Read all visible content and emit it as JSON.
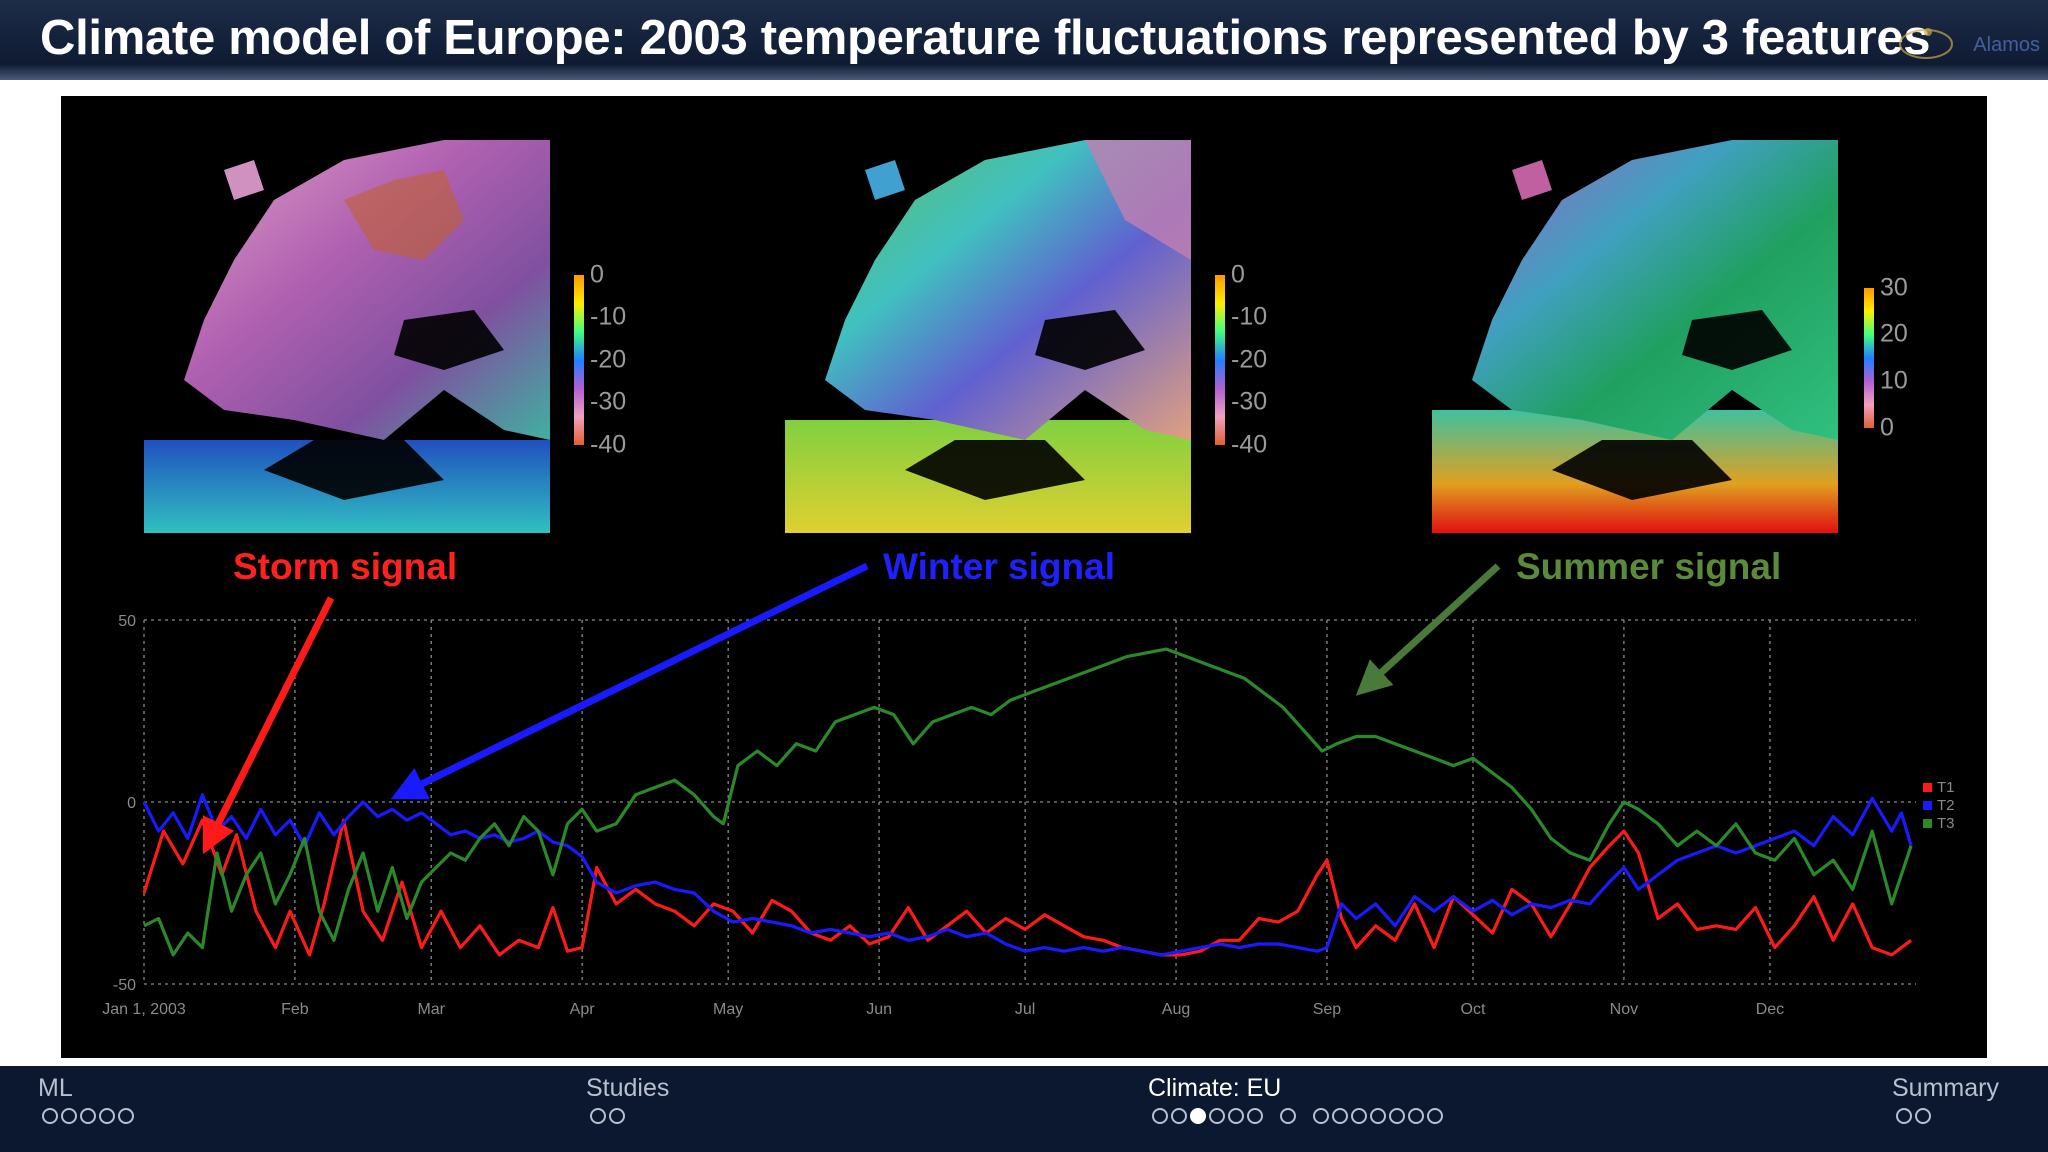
{
  "header": {
    "title": "Climate model of Europe: 2003 temperature fluctuations represented by 3 features",
    "logo_text": "Alamos"
  },
  "figure": {
    "maps": [
      {
        "name": "storm",
        "colorbar_ticks": [
          "0",
          "-10",
          "-20",
          "-30",
          "-40"
        ]
      },
      {
        "name": "winter",
        "colorbar_ticks": [
          "0",
          "-10",
          "-20",
          "-30",
          "-40"
        ]
      },
      {
        "name": "summer",
        "colorbar_ticks": [
          "30",
          "20",
          "10",
          "0"
        ]
      }
    ],
    "signals": [
      {
        "label": "Storm signal",
        "color": "#ff1a1a"
      },
      {
        "label": "Winter signal",
        "color": "#1a1aff"
      },
      {
        "label": "Summer signal",
        "color": "#4a8a2a"
      }
    ]
  },
  "chart_data": {
    "type": "line",
    "x_tick_labels": [
      "Jan 1, 2003",
      "Feb",
      "Mar",
      "Apr",
      "May",
      "Jun",
      "Jul",
      "Aug",
      "Sep",
      "Oct",
      "Nov",
      "Dec"
    ],
    "x_tick_days": [
      1,
      32,
      60,
      91,
      121,
      152,
      182,
      213,
      244,
      274,
      305,
      335
    ],
    "xlim": [
      1,
      365
    ],
    "ylim": [
      -50,
      50
    ],
    "y_ticks": [
      50,
      0,
      -50
    ],
    "grid": true,
    "legend_position": "right",
    "series": [
      {
        "name": "T1",
        "color": "#ff1a1a",
        "points": [
          [
            1,
            -25
          ],
          [
            5,
            -8
          ],
          [
            9,
            -17
          ],
          [
            13,
            -5
          ],
          [
            17,
            -20
          ],
          [
            20,
            -9
          ],
          [
            24,
            -30
          ],
          [
            28,
            -40
          ],
          [
            31,
            -30
          ],
          [
            35,
            -42
          ],
          [
            38,
            -28
          ],
          [
            42,
            -5
          ],
          [
            46,
            -30
          ],
          [
            50,
            -38
          ],
          [
            54,
            -22
          ],
          [
            58,
            -40
          ],
          [
            62,
            -30
          ],
          [
            66,
            -40
          ],
          [
            70,
            -34
          ],
          [
            74,
            -42
          ],
          [
            78,
            -38
          ],
          [
            82,
            -40
          ],
          [
            85,
            -29
          ],
          [
            88,
            -41
          ],
          [
            91,
            -40
          ],
          [
            94,
            -18
          ],
          [
            98,
            -28
          ],
          [
            102,
            -24
          ],
          [
            106,
            -28
          ],
          [
            110,
            -30
          ],
          [
            114,
            -34
          ],
          [
            118,
            -28
          ],
          [
            122,
            -30
          ],
          [
            126,
            -36
          ],
          [
            130,
            -27
          ],
          [
            134,
            -30
          ],
          [
            138,
            -36
          ],
          [
            142,
            -38
          ],
          [
            146,
            -34
          ],
          [
            150,
            -39
          ],
          [
            154,
            -37
          ],
          [
            158,
            -29
          ],
          [
            162,
            -38
          ],
          [
            166,
            -34
          ],
          [
            170,
            -30
          ],
          [
            174,
            -36
          ],
          [
            178,
            -32
          ],
          [
            182,
            -35
          ],
          [
            186,
            -31
          ],
          [
            190,
            -34
          ],
          [
            194,
            -37
          ],
          [
            198,
            -38
          ],
          [
            202,
            -40
          ],
          [
            206,
            -41
          ],
          [
            210,
            -42
          ],
          [
            214,
            -42
          ],
          [
            218,
            -41
          ],
          [
            222,
            -38
          ],
          [
            226,
            -38
          ],
          [
            230,
            -32
          ],
          [
            234,
            -33
          ],
          [
            238,
            -30
          ],
          [
            242,
            -20
          ],
          [
            244,
            -16
          ],
          [
            247,
            -32
          ],
          [
            250,
            -40
          ],
          [
            254,
            -34
          ],
          [
            258,
            -38
          ],
          [
            262,
            -28
          ],
          [
            266,
            -40
          ],
          [
            270,
            -26
          ],
          [
            274,
            -31
          ],
          [
            278,
            -36
          ],
          [
            282,
            -24
          ],
          [
            286,
            -28
          ],
          [
            290,
            -37
          ],
          [
            294,
            -28
          ],
          [
            298,
            -18
          ],
          [
            302,
            -12
          ],
          [
            305,
            -8
          ],
          [
            308,
            -14
          ],
          [
            312,
            -32
          ],
          [
            316,
            -28
          ],
          [
            320,
            -35
          ],
          [
            324,
            -34
          ],
          [
            328,
            -35
          ],
          [
            332,
            -29
          ],
          [
            336,
            -40
          ],
          [
            340,
            -34
          ],
          [
            344,
            -26
          ],
          [
            348,
            -38
          ],
          [
            352,
            -28
          ],
          [
            356,
            -40
          ],
          [
            360,
            -42
          ],
          [
            364,
            -38
          ]
        ]
      },
      {
        "name": "T2",
        "color": "#1a1aff",
        "points": [
          [
            1,
            0
          ],
          [
            4,
            -8
          ],
          [
            7,
            -3
          ],
          [
            10,
            -10
          ],
          [
            13,
            2
          ],
          [
            16,
            -8
          ],
          [
            19,
            -4
          ],
          [
            22,
            -10
          ],
          [
            25,
            -2
          ],
          [
            28,
            -9
          ],
          [
            31,
            -5
          ],
          [
            34,
            -12
          ],
          [
            37,
            -3
          ],
          [
            40,
            -9
          ],
          [
            43,
            -4
          ],
          [
            46,
            0
          ],
          [
            49,
            -4
          ],
          [
            52,
            -2
          ],
          [
            55,
            -5
          ],
          [
            58,
            -3
          ],
          [
            61,
            -6
          ],
          [
            64,
            -9
          ],
          [
            67,
            -8
          ],
          [
            70,
            -10
          ],
          [
            73,
            -9
          ],
          [
            76,
            -11
          ],
          [
            79,
            -10
          ],
          [
            82,
            -8
          ],
          [
            85,
            -11
          ],
          [
            88,
            -12
          ],
          [
            91,
            -15
          ],
          [
            94,
            -22
          ],
          [
            98,
            -25
          ],
          [
            102,
            -23
          ],
          [
            106,
            -22
          ],
          [
            110,
            -24
          ],
          [
            114,
            -25
          ],
          [
            118,
            -30
          ],
          [
            122,
            -33
          ],
          [
            126,
            -32
          ],
          [
            130,
            -33
          ],
          [
            134,
            -34
          ],
          [
            138,
            -36
          ],
          [
            142,
            -35
          ],
          [
            146,
            -36
          ],
          [
            150,
            -37
          ],
          [
            154,
            -36
          ],
          [
            158,
            -38
          ],
          [
            162,
            -37
          ],
          [
            166,
            -35
          ],
          [
            170,
            -37
          ],
          [
            174,
            -36
          ],
          [
            178,
            -39
          ],
          [
            182,
            -41
          ],
          [
            186,
            -40
          ],
          [
            190,
            -41
          ],
          [
            194,
            -40
          ],
          [
            198,
            -41
          ],
          [
            202,
            -40
          ],
          [
            206,
            -41
          ],
          [
            210,
            -42
          ],
          [
            214,
            -41
          ],
          [
            218,
            -40
          ],
          [
            222,
            -39
          ],
          [
            226,
            -40
          ],
          [
            230,
            -39
          ],
          [
            234,
            -39
          ],
          [
            238,
            -40
          ],
          [
            242,
            -41
          ],
          [
            244,
            -40
          ],
          [
            247,
            -28
          ],
          [
            250,
            -32
          ],
          [
            254,
            -28
          ],
          [
            258,
            -34
          ],
          [
            262,
            -26
          ],
          [
            266,
            -30
          ],
          [
            270,
            -26
          ],
          [
            274,
            -30
          ],
          [
            278,
            -27
          ],
          [
            282,
            -31
          ],
          [
            286,
            -28
          ],
          [
            290,
            -29
          ],
          [
            294,
            -27
          ],
          [
            298,
            -28
          ],
          [
            302,
            -22
          ],
          [
            305,
            -18
          ],
          [
            308,
            -24
          ],
          [
            312,
            -20
          ],
          [
            316,
            -16
          ],
          [
            320,
            -14
          ],
          [
            324,
            -12
          ],
          [
            328,
            -14
          ],
          [
            332,
            -12
          ],
          [
            336,
            -10
          ],
          [
            340,
            -8
          ],
          [
            344,
            -12
          ],
          [
            348,
            -4
          ],
          [
            352,
            -9
          ],
          [
            356,
            1
          ],
          [
            360,
            -8
          ],
          [
            362,
            -3
          ],
          [
            364,
            -12
          ]
        ]
      },
      {
        "name": "T3",
        "color": "#2a8a2a",
        "points": [
          [
            1,
            -34
          ],
          [
            4,
            -32
          ],
          [
            7,
            -42
          ],
          [
            10,
            -36
          ],
          [
            13,
            -40
          ],
          [
            16,
            -14
          ],
          [
            19,
            -30
          ],
          [
            22,
            -20
          ],
          [
            25,
            -14
          ],
          [
            28,
            -28
          ],
          [
            31,
            -20
          ],
          [
            34,
            -10
          ],
          [
            37,
            -30
          ],
          [
            40,
            -38
          ],
          [
            43,
            -24
          ],
          [
            46,
            -14
          ],
          [
            49,
            -30
          ],
          [
            52,
            -18
          ],
          [
            55,
            -32
          ],
          [
            58,
            -22
          ],
          [
            61,
            -18
          ],
          [
            64,
            -14
          ],
          [
            67,
            -16
          ],
          [
            70,
            -10
          ],
          [
            73,
            -6
          ],
          [
            76,
            -12
          ],
          [
            79,
            -4
          ],
          [
            82,
            -8
          ],
          [
            85,
            -20
          ],
          [
            88,
            -6
          ],
          [
            91,
            -2
          ],
          [
            94,
            -8
          ],
          [
            98,
            -6
          ],
          [
            102,
            2
          ],
          [
            106,
            4
          ],
          [
            110,
            6
          ],
          [
            114,
            2
          ],
          [
            118,
            -4
          ],
          [
            120,
            -6
          ],
          [
            123,
            10
          ],
          [
            127,
            14
          ],
          [
            131,
            10
          ],
          [
            135,
            16
          ],
          [
            139,
            14
          ],
          [
            143,
            22
          ],
          [
            147,
            24
          ],
          [
            151,
            26
          ],
          [
            155,
            24
          ],
          [
            159,
            16
          ],
          [
            163,
            22
          ],
          [
            167,
            24
          ],
          [
            171,
            26
          ],
          [
            175,
            24
          ],
          [
            179,
            28
          ],
          [
            183,
            30
          ],
          [
            187,
            32
          ],
          [
            191,
            34
          ],
          [
            195,
            36
          ],
          [
            199,
            38
          ],
          [
            203,
            40
          ],
          [
            207,
            41
          ],
          [
            211,
            42
          ],
          [
            215,
            40
          ],
          [
            219,
            38
          ],
          [
            223,
            36
          ],
          [
            227,
            34
          ],
          [
            231,
            30
          ],
          [
            235,
            26
          ],
          [
            239,
            20
          ],
          [
            243,
            14
          ],
          [
            246,
            16
          ],
          [
            250,
            18
          ],
          [
            254,
            18
          ],
          [
            258,
            16
          ],
          [
            262,
            14
          ],
          [
            266,
            12
          ],
          [
            270,
            10
          ],
          [
            274,
            12
          ],
          [
            278,
            8
          ],
          [
            282,
            4
          ],
          [
            286,
            -2
          ],
          [
            290,
            -10
          ],
          [
            294,
            -14
          ],
          [
            298,
            -16
          ],
          [
            302,
            -6
          ],
          [
            305,
            0
          ],
          [
            308,
            -2
          ],
          [
            312,
            -6
          ],
          [
            316,
            -12
          ],
          [
            320,
            -8
          ],
          [
            324,
            -12
          ],
          [
            328,
            -6
          ],
          [
            332,
            -14
          ],
          [
            336,
            -16
          ],
          [
            340,
            -10
          ],
          [
            344,
            -20
          ],
          [
            348,
            -16
          ],
          [
            352,
            -24
          ],
          [
            356,
            -8
          ],
          [
            360,
            -28
          ],
          [
            364,
            -12
          ]
        ]
      }
    ]
  },
  "footer": {
    "sections": [
      {
        "label": "ML",
        "dots": [
          0,
          0,
          0,
          0,
          0
        ],
        "active": false
      },
      {
        "label": "Studies",
        "dots": [
          0,
          0
        ],
        "active": false
      },
      {
        "label": "Climate: EU",
        "groups": [
          [
            0,
            0,
            1,
            0,
            0,
            0
          ],
          [
            0
          ],
          [
            0,
            0,
            0,
            0,
            0,
            0,
            0
          ]
        ],
        "active": true
      },
      {
        "label": "Summary",
        "dots": [
          0,
          0
        ],
        "active": false
      }
    ]
  }
}
